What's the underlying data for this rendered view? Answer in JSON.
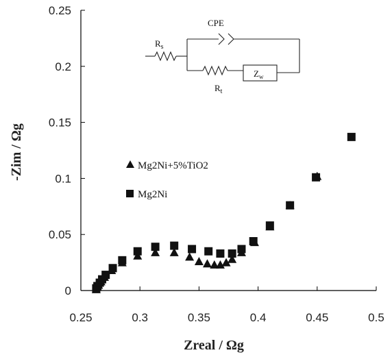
{
  "chart_data": {
    "type": "scatter",
    "xlabel": "Zreal / Ωg",
    "ylabel": "-Zim / Ωg",
    "xlim": [
      0.25,
      0.5
    ],
    "ylim": [
      0,
      0.25
    ],
    "x_ticks": [
      "0.25",
      "0.3",
      "0.35",
      "0.4",
      "0.45",
      "0.5"
    ],
    "y_ticks": [
      "0",
      "0.05",
      "0.1",
      "0.15",
      "0.2",
      "0.25"
    ],
    "grid": false,
    "legend_position": "middle-left",
    "series": [
      {
        "name": "Mg2Ni+5%TiO2",
        "marker": "triangle",
        "color": "#111111",
        "points": [
          [
            0.263,
            0.001
          ],
          [
            0.264,
            0.003
          ],
          [
            0.265,
            0.005
          ],
          [
            0.267,
            0.008
          ],
          [
            0.27,
            0.012
          ],
          [
            0.276,
            0.018
          ],
          [
            0.285,
            0.025
          ],
          [
            0.298,
            0.031
          ],
          [
            0.313,
            0.034
          ],
          [
            0.329,
            0.034
          ],
          [
            0.342,
            0.03
          ],
          [
            0.35,
            0.026
          ],
          [
            0.357,
            0.024
          ],
          [
            0.363,
            0.023
          ],
          [
            0.368,
            0.023
          ],
          [
            0.373,
            0.025
          ],
          [
            0.378,
            0.028
          ],
          [
            0.386,
            0.034
          ],
          [
            0.397,
            0.043
          ],
          [
            0.41,
            0.057
          ],
          [
            0.427,
            0.076
          ],
          [
            0.45,
            0.102
          ]
        ]
      },
      {
        "name": "Mg2Ni",
        "marker": "square",
        "color": "#111111",
        "points": [
          [
            0.263,
            0.002
          ],
          [
            0.264,
            0.004
          ],
          [
            0.266,
            0.007
          ],
          [
            0.268,
            0.01
          ],
          [
            0.271,
            0.014
          ],
          [
            0.277,
            0.02
          ],
          [
            0.285,
            0.027
          ],
          [
            0.298,
            0.035
          ],
          [
            0.313,
            0.039
          ],
          [
            0.329,
            0.04
          ],
          [
            0.344,
            0.037
          ],
          [
            0.358,
            0.035
          ],
          [
            0.368,
            0.033
          ],
          [
            0.378,
            0.033
          ],
          [
            0.386,
            0.037
          ],
          [
            0.396,
            0.044
          ],
          [
            0.41,
            0.058
          ],
          [
            0.427,
            0.076
          ],
          [
            0.449,
            0.101
          ],
          [
            0.479,
            0.137
          ]
        ]
      }
    ]
  },
  "circuit": {
    "rs_label": "R",
    "rs_sub": "s",
    "cpe_label": "CPE",
    "rt_label": "R",
    "rt_sub": "t",
    "zw_label": "Z",
    "zw_sub": "w"
  }
}
